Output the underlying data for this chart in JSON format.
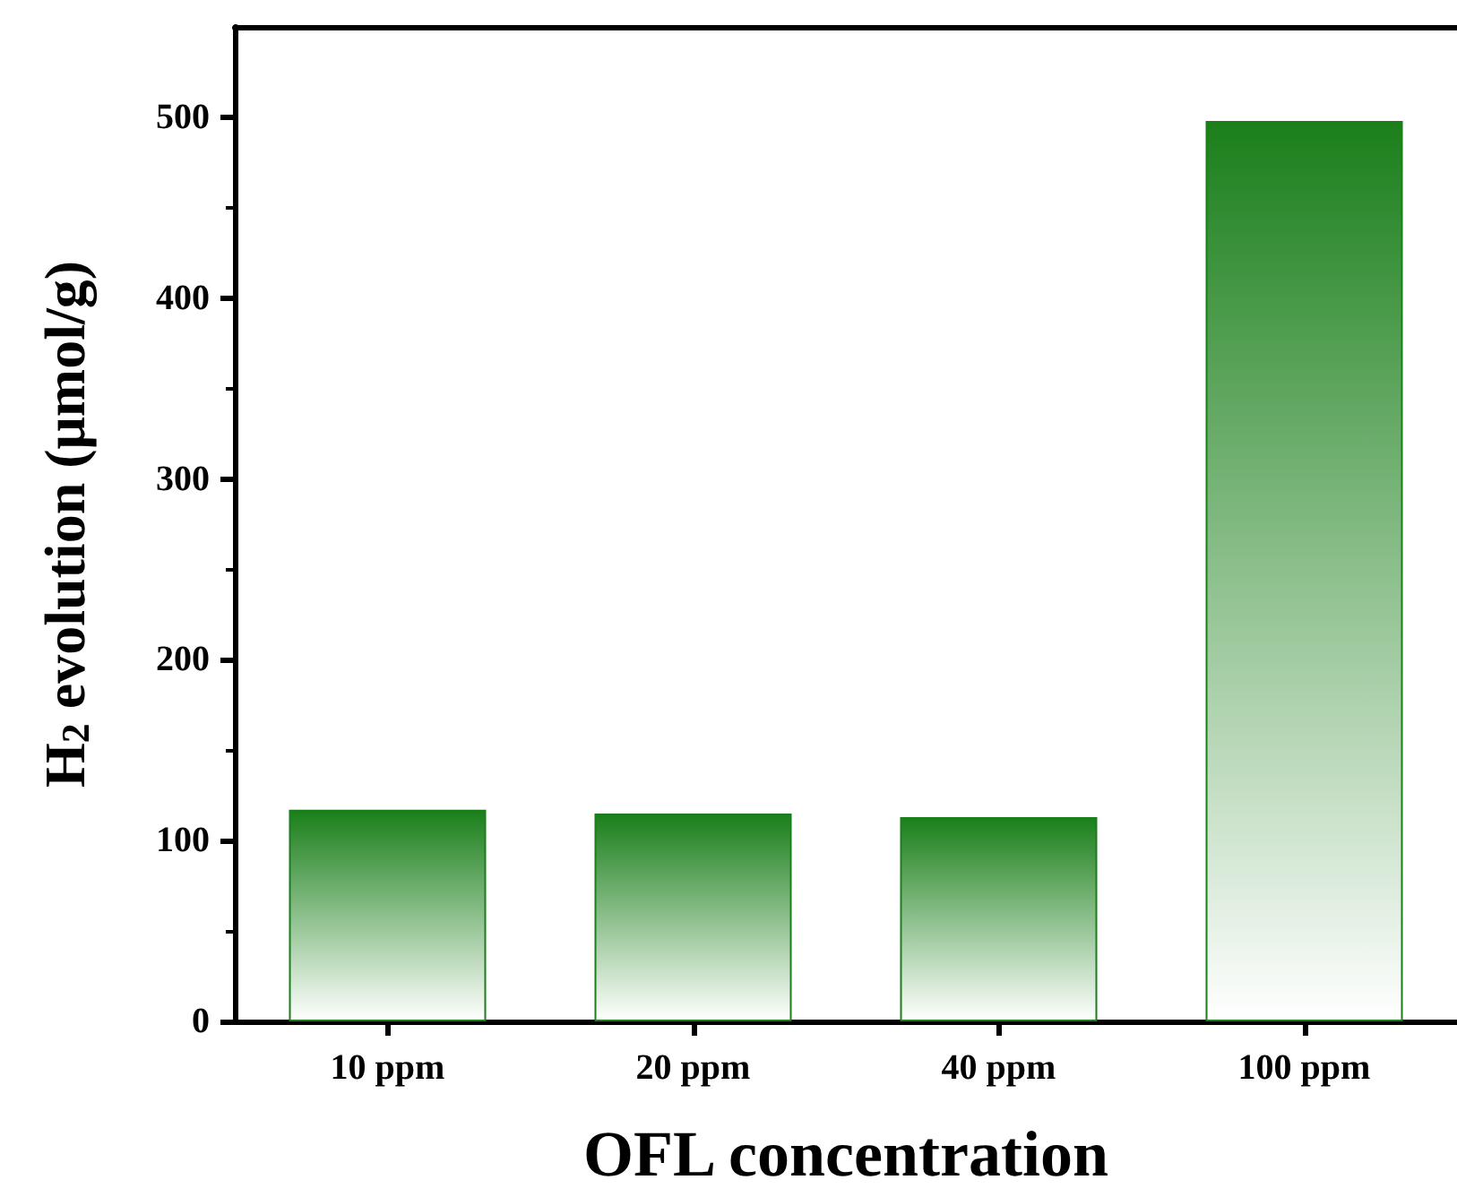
{
  "chart_data": {
    "type": "bar",
    "xlabel": "OFL concentration",
    "ylabel": "H$_{2}$ evolution (μmol/g)",
    "categories": [
      "10 ppm",
      "20 ppm",
      "40 ppm",
      "100 ppm"
    ],
    "values": [
      117,
      115,
      113,
      498
    ],
    "color": "#1a7f1a",
    "ylim": [
      0,
      550
    ],
    "yticks": [
      0,
      100,
      200,
      300,
      400,
      500
    ]
  }
}
